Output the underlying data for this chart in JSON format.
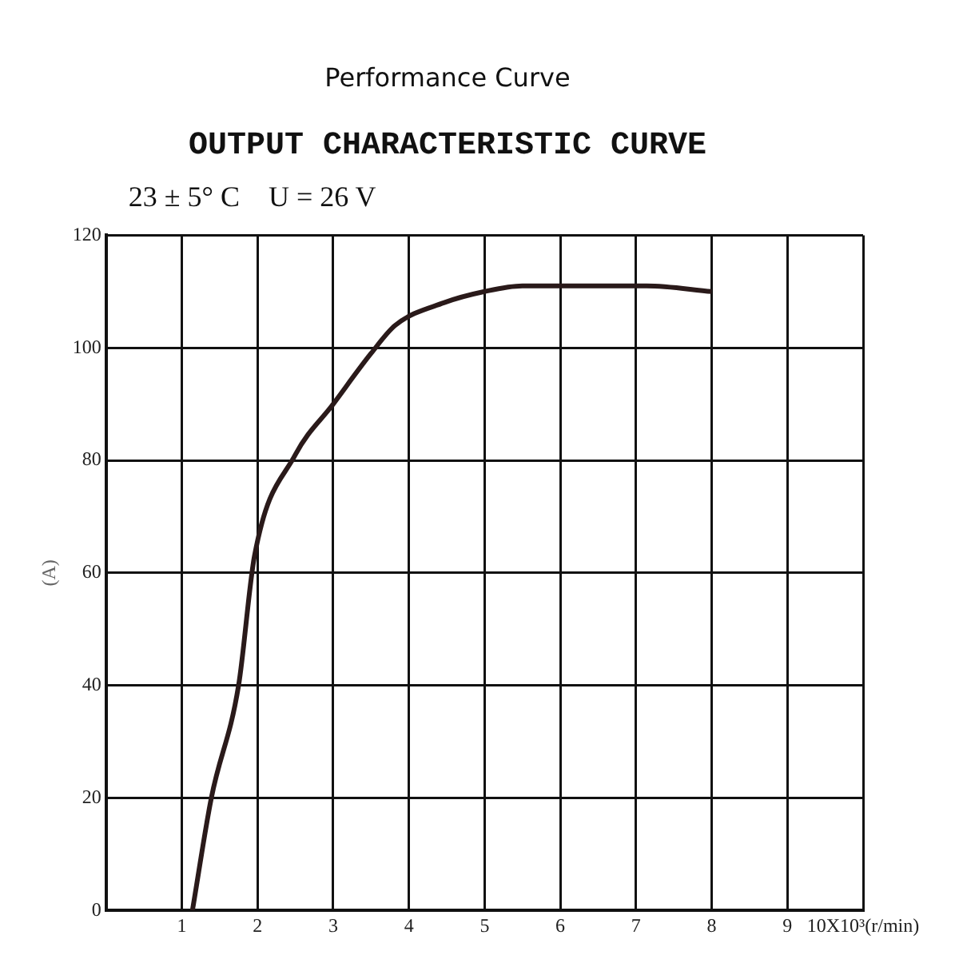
{
  "chart_data": {
    "type": "line",
    "title": "Performance Curve",
    "subtitle": "OUTPUT CHARACTERISTIC CURVE",
    "ylabel": "(A)",
    "annotations": [
      "23 ± 5° C    U = 26 V"
    ],
    "series": [
      {
        "color": "#2a1a1a",
        "x": [
          1.14,
          1.39,
          1.75,
          1.96,
          2.5,
          3.0,
          3.5,
          3.82,
          4.46,
          5.0,
          5.5,
          6.0,
          7.14,
          8.0
        ],
        "values": [
          0,
          20,
          40,
          63,
          81,
          90,
          99,
          104,
          108,
          110,
          111,
          111,
          111,
          110
        ]
      }
    ],
    "xlim": [
      0,
      10
    ],
    "xticks": [
      1,
      2,
      3,
      4,
      5,
      6,
      7,
      8,
      9,
      {
        "value": 10,
        "label": "10X10³(r/min)"
      }
    ],
    "ylim": [
      0,
      120
    ],
    "yticks": [
      0,
      20,
      40,
      60,
      80,
      100,
      120
    ],
    "grid": true,
    "marker": "none",
    "line_style": "solid"
  }
}
